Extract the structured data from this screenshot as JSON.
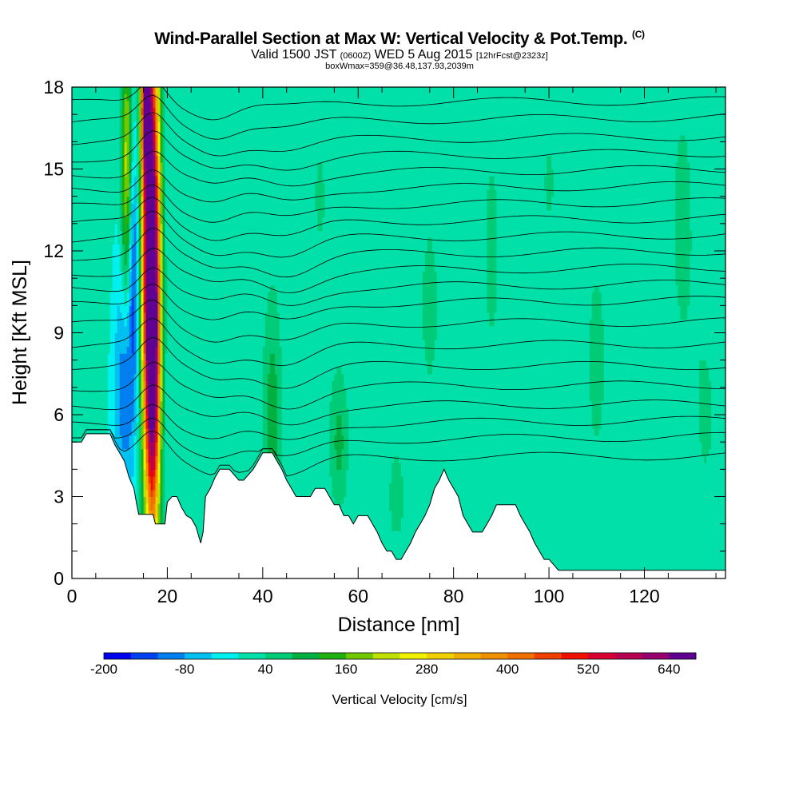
{
  "titles": {
    "main": "Wind-Parallel Section at Max W: Vertical Velocity & Pot.Temp.",
    "copyright": "(C)",
    "valid_a": "Valid 1500 JST",
    "valid_z": "(0600Z)",
    "valid_b": "WED 5 Aug 2015",
    "forecast": "[12hrFcst@2323z]",
    "boxline": "boxWmax=359@36.48,137.93,2039m"
  },
  "chart_data": {
    "type": "heatmap",
    "xlabel": "Distance [nm]",
    "ylabel": "Height [Kft MSL]",
    "xlim": [
      0,
      137
    ],
    "ylim": [
      0,
      18
    ],
    "x_ticks": [
      0,
      20,
      40,
      60,
      80,
      100,
      120
    ],
    "x_tick_labels": [
      "0",
      "20",
      "40",
      "60",
      "80",
      "100",
      "120"
    ],
    "y_ticks": [
      0,
      3,
      6,
      9,
      12,
      15,
      18
    ],
    "y_tick_labels": [
      "0",
      "3",
      "6",
      "9",
      "12",
      "15",
      "18"
    ],
    "colorbar": {
      "label": "Vertical Velocity [cm/s]",
      "min": -200,
      "step": 40,
      "labels": [
        "-200",
        "-80",
        "40",
        "160",
        "280",
        "400",
        "520",
        "640"
      ],
      "label_values": [
        -200,
        -80,
        40,
        160,
        280,
        400,
        520,
        640
      ],
      "colors": [
        "#0000f0",
        "#0040f0",
        "#0080f0",
        "#00c0f0",
        "#00f0f0",
        "#00e0a8",
        "#00cc78",
        "#00b040",
        "#20b010",
        "#70c800",
        "#c0e000",
        "#f0f000",
        "#f0d000",
        "#f0b000",
        "#f09000",
        "#f07000",
        "#f04000",
        "#f01000",
        "#d80030",
        "#b80050",
        "#980070",
        "#600090"
      ]
    },
    "background_value": 0,
    "ridge": [
      [
        0,
        5.0
      ],
      [
        2,
        5.0
      ],
      [
        3,
        5.3
      ],
      [
        8,
        5.3
      ],
      [
        9,
        4.9
      ],
      [
        10,
        4.6
      ],
      [
        11,
        4.3
      ],
      [
        12,
        3.7
      ],
      [
        13,
        3.3
      ],
      [
        13.6,
        2.7
      ],
      [
        14,
        2.35
      ],
      [
        17,
        2.35
      ],
      [
        17.5,
        2.0
      ],
      [
        19.5,
        2.0
      ],
      [
        20,
        2.8
      ],
      [
        21,
        3.0
      ],
      [
        22,
        3.0
      ],
      [
        23,
        2.6
      ],
      [
        24,
        2.3
      ],
      [
        25,
        2.2
      ],
      [
        26,
        1.9
      ],
      [
        27,
        1.3
      ],
      [
        27.5,
        1.7
      ],
      [
        28,
        3.0
      ],
      [
        29,
        3.3
      ],
      [
        30,
        3.7
      ],
      [
        31,
        4.0
      ],
      [
        33,
        4.0
      ],
      [
        34,
        3.8
      ],
      [
        35,
        3.6
      ],
      [
        36,
        3.6
      ],
      [
        38,
        4.0
      ],
      [
        39,
        4.3
      ],
      [
        40,
        4.6
      ],
      [
        42,
        4.6
      ],
      [
        43,
        4.3
      ],
      [
        44,
        4.0
      ],
      [
        45,
        3.6
      ],
      [
        46,
        3.3
      ],
      [
        47,
        3.0
      ],
      [
        50,
        3.0
      ],
      [
        51,
        3.3
      ],
      [
        53,
        3.3
      ],
      [
        54,
        3.0
      ],
      [
        55,
        2.7
      ],
      [
        56,
        2.7
      ],
      [
        57,
        2.3
      ],
      [
        58,
        2.3
      ],
      [
        59,
        2.0
      ],
      [
        60,
        2.3
      ],
      [
        62,
        2.3
      ],
      [
        63,
        2.0
      ],
      [
        64,
        1.7
      ],
      [
        65,
        1.3
      ],
      [
        66,
        1.0
      ],
      [
        67,
        1.0
      ],
      [
        68,
        0.7
      ],
      [
        69,
        0.7
      ],
      [
        70,
        1.0
      ],
      [
        71,
        1.3
      ],
      [
        72,
        1.7
      ],
      [
        73,
        2.0
      ],
      [
        74,
        2.3
      ],
      [
        75,
        2.7
      ],
      [
        76,
        3.3
      ],
      [
        77,
        3.6
      ],
      [
        78,
        4.0
      ],
      [
        79,
        3.6
      ],
      [
        80,
        3.3
      ],
      [
        81,
        3.0
      ],
      [
        82,
        2.3
      ],
      [
        83,
        2.0
      ],
      [
        84,
        1.7
      ],
      [
        86,
        1.7
      ],
      [
        87,
        2.0
      ],
      [
        88,
        2.3
      ],
      [
        89,
        2.7
      ],
      [
        93,
        2.7
      ],
      [
        94,
        2.3
      ],
      [
        95,
        2.0
      ],
      [
        96,
        1.7
      ],
      [
        97,
        1.3
      ],
      [
        98,
        1.0
      ],
      [
        99,
        0.7
      ],
      [
        100,
        0.7
      ],
      [
        101,
        0.5
      ],
      [
        102,
        0.3
      ],
      [
        137,
        0.3
      ]
    ],
    "w_features": [
      {
        "x": 16.5,
        "y": 12.5,
        "sx": 1.3,
        "sy": 6.0,
        "amp": 700
      },
      {
        "x": 17.0,
        "y": 7.0,
        "sx": 1.1,
        "sy": 4.5,
        "amp": 380
      },
      {
        "x": 11.5,
        "y": 15.0,
        "sx": 0.8,
        "sy": 3.5,
        "amp": 230
      },
      {
        "x": 13.0,
        "y": 11.5,
        "sx": 0.9,
        "sy": 3.5,
        "amp": -140
      },
      {
        "x": 11.0,
        "y": 7.0,
        "sx": 1.5,
        "sy": 3.0,
        "amp": -110
      },
      {
        "x": 15.5,
        "y": 17.5,
        "sx": 0.7,
        "sy": 2.0,
        "amp": 420
      },
      {
        "x": 42.0,
        "y": 6.0,
        "sx": 1.5,
        "sy": 3.5,
        "amp": 100
      },
      {
        "x": 56.0,
        "y": 5.0,
        "sx": 1.5,
        "sy": 2.0,
        "amp": 90
      },
      {
        "x": 68.0,
        "y": 3.0,
        "sx": 1.5,
        "sy": 1.5,
        "amp": 60
      },
      {
        "x": 75.0,
        "y": 10.0,
        "sx": 3.0,
        "sy": 5.0,
        "amp": 45
      },
      {
        "x": 88.0,
        "y": 12.0,
        "sx": 2.5,
        "sy": 6.0,
        "amp": 45
      },
      {
        "x": 110.0,
        "y": 8.0,
        "sx": 3.0,
        "sy": 6.0,
        "amp": 45
      },
      {
        "x": 128.0,
        "y": 13.0,
        "sx": 2.5,
        "sy": 5.0,
        "amp": 50
      },
      {
        "x": 100.0,
        "y": 14.5,
        "sx": 2.5,
        "sy": 3.0,
        "amp": 42
      },
      {
        "x": 62.0,
        "y": 13.0,
        "sx": 3.0,
        "sy": 3.0,
        "amp": 40
      },
      {
        "x": 52.0,
        "y": 14.0,
        "sx": 2.5,
        "sy": 4.0,
        "amp": 42
      },
      {
        "x": 35.0,
        "y": 12.0,
        "sx": 2.0,
        "sy": 4.0,
        "amp": 40
      },
      {
        "x": 5.0,
        "y": 12.0,
        "sx": 2.0,
        "sy": 4.0,
        "amp": 40
      },
      {
        "x": 133.0,
        "y": 6.0,
        "sx": 2.0,
        "sy": 3.0,
        "amp": 45
      }
    ],
    "theta_contours": [
      {
        "label": "",
        "y0": 4.4,
        "y1": 4.5
      },
      {
        "label": "",
        "y0": 5.0,
        "y1": 5.2
      },
      {
        "label": "",
        "y0": 5.6,
        "y1": 5.8
      },
      {
        "label": "",
        "y0": 6.3,
        "y1": 6.4
      },
      {
        "label": "",
        "y0": 7.0,
        "y1": 7.1
      },
      {
        "label": "",
        "y0": 7.8,
        "y1": 7.8
      },
      {
        "label": "",
        "y0": 8.5,
        "y1": 8.6
      },
      {
        "label": "",
        "y0": 9.3,
        "y1": 9.4
      },
      {
        "label": "",
        "y0": 10.0,
        "y1": 10.2
      },
      {
        "label": "",
        "y0": 10.6,
        "y1": 10.8
      },
      {
        "label": "",
        "y0": 11.2,
        "y1": 11.4
      },
      {
        "label": "",
        "y0": 11.8,
        "y1": 12.0
      },
      {
        "label": "",
        "y0": 12.4,
        "y1": 12.6
      },
      {
        "label": "",
        "y0": 13.0,
        "y1": 13.2
      },
      {
        "label": "",
        "y0": 13.6,
        "y1": 13.8
      },
      {
        "label": "",
        "y0": 14.2,
        "y1": 14.4
      },
      {
        "label": "",
        "y0": 14.8,
        "y1": 15.0
      },
      {
        "label": "",
        "y0": 15.4,
        "y1": 15.6
      },
      {
        "label": "",
        "y0": 16.0,
        "y1": 16.2
      },
      {
        "label": "",
        "y0": 16.7,
        "y1": 16.9
      },
      {
        "label": "",
        "y0": 17.4,
        "y1": 17.5
      }
    ]
  }
}
